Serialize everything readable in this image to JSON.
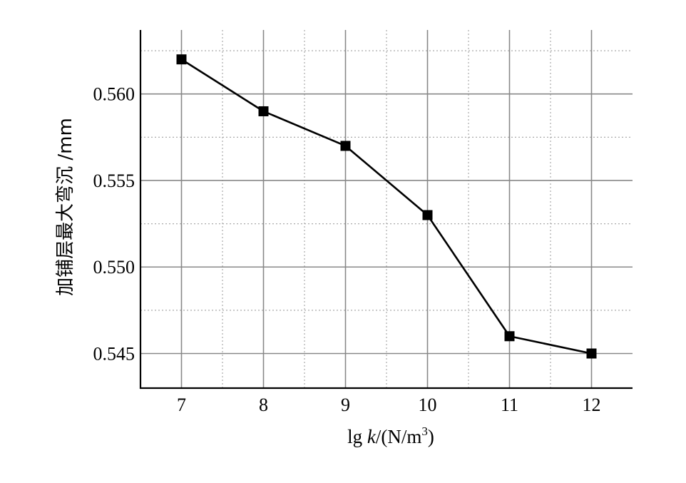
{
  "chart_data": {
    "type": "line",
    "x": [
      7,
      8,
      9,
      10,
      11,
      12
    ],
    "series": [
      {
        "values": [
          0.562,
          0.559,
          0.557,
          0.553,
          0.546,
          0.545
        ]
      }
    ],
    "xticks": [
      "7",
      "8",
      "9",
      "10",
      "11",
      "12"
    ],
    "yticks": [
      "0.545",
      "0.550",
      "0.555",
      "0.560"
    ],
    "ytick_values": [
      0.545,
      0.55,
      0.555,
      0.56
    ],
    "xlim": [
      6.5,
      12.5
    ],
    "ylim": [
      0.543,
      0.5637
    ],
    "xlabel": {
      "prefix": "lg ",
      "var": "k",
      "mid": "/(N/m",
      "sup": "3",
      "suffix": ")"
    },
    "ylabel": "加铺层最大弯沉 /mm",
    "grid": "major solid, minor dotted",
    "marker": "square",
    "color": "#000000"
  }
}
